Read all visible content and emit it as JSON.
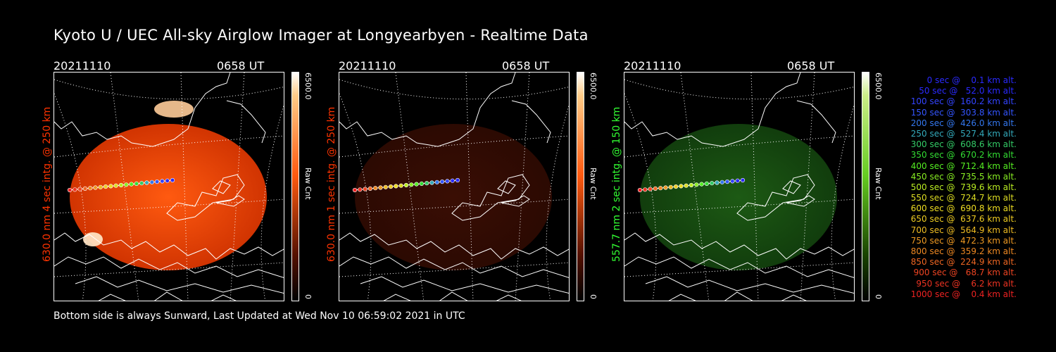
{
  "title": "Kyoto U / UEC All-sky Airglow Imager at Longyearbyen - Realtime Data",
  "footer": "Bottom side is always Sunward, Last Updated at Wed Nov 10 06:59:02 2021 in UTC",
  "colorbar": {
    "max_label": "6500.0",
    "min_label": "0",
    "unit_label": "Raw Cnt"
  },
  "panels": [
    {
      "date": "20211110",
      "time": "0658 UT",
      "ylabel": "630.0 nm 4 sec intg. @ 250 km",
      "color": "#ff3300",
      "cbar_color": "#ff5a10",
      "brightness": "bright"
    },
    {
      "date": "20211110",
      "time": "0658 UT",
      "ylabel": "630.0 nm 1 sec intg. @ 250 km",
      "color": "#ff3300",
      "cbar_color": "#ff5a10",
      "brightness": "dim"
    },
    {
      "date": "20211110",
      "time": "0658 UT",
      "ylabel": "557.7 nm 2 sec intg. @ 150 km",
      "color": "#33ff33",
      "cbar_color": "#66cc22",
      "brightness": "green"
    }
  ],
  "legend": [
    {
      "text": "   0 sec @    0.1 km alt.",
      "color": "#2a2aff"
    },
    {
      "text": "  50 sec @   52.0 km alt.",
      "color": "#2a2aff"
    },
    {
      "text": " 100 sec @  160.2 km alt.",
      "color": "#3344ff"
    },
    {
      "text": " 150 sec @  303.8 km alt.",
      "color": "#3355ff"
    },
    {
      "text": " 200 sec @  426.0 km alt.",
      "color": "#3377ee"
    },
    {
      "text": " 250 sec @  527.4 km alt.",
      "color": "#33aabb"
    },
    {
      "text": " 300 sec @  608.6 km alt.",
      "color": "#33cc66"
    },
    {
      "text": " 350 sec @  670.2 km alt.",
      "color": "#33dd33"
    },
    {
      "text": " 400 sec @  712.4 km alt.",
      "color": "#55ee22"
    },
    {
      "text": " 450 sec @  735.5 km alt.",
      "color": "#88ee22"
    },
    {
      "text": " 500 sec @  739.6 km alt.",
      "color": "#bbee22"
    },
    {
      "text": " 550 sec @  724.7 km alt.",
      "color": "#dddd22"
    },
    {
      "text": " 600 sec @  690.8 km alt.",
      "color": "#eedd22"
    },
    {
      "text": " 650 sec @  637.6 km alt.",
      "color": "#eecc22"
    },
    {
      "text": " 700 sec @  564.9 km alt.",
      "color": "#eebb22"
    },
    {
      "text": " 750 sec @  472.3 km alt.",
      "color": "#ee9922"
    },
    {
      "text": " 800 sec @  359.2 km alt.",
      "color": "#ee8822"
    },
    {
      "text": " 850 sec @  224.9 km alt.",
      "color": "#ee6622"
    },
    {
      "text": " 900 sec @   68.7 km alt.",
      "color": "#ee4422"
    },
    {
      "text": " 950 sec @    6.2 km alt.",
      "color": "#ee3322"
    },
    {
      "text": "1000 sec @    0.4 km alt.",
      "color": "#ee2222"
    }
  ]
}
